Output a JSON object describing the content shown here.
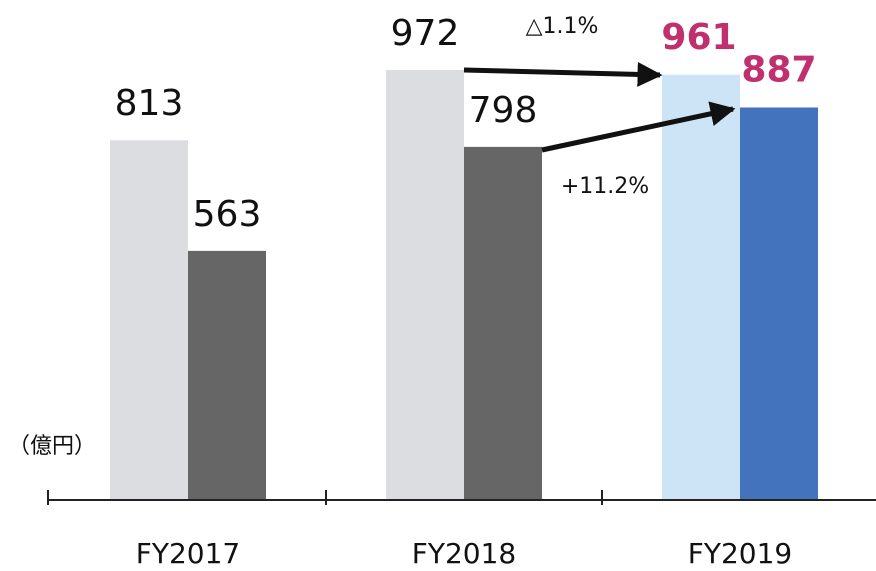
{
  "chart_data": {
    "type": "bar",
    "categories": [
      "FY2017",
      "FY2018",
      "FY2019"
    ],
    "series": [
      {
        "colors": [
          "#dcdde0",
          "#dcdde0",
          "#cde4f6"
        ],
        "values": [
          813,
          972,
          961
        ],
        "label_colors": [
          "#111111",
          "#111111",
          "#c0306f"
        ],
        "label_weights": [
          "normal",
          "normal",
          "bold"
        ]
      },
      {
        "colors": [
          "#666666",
          "#666666",
          "#4473be"
        ],
        "values": [
          563,
          798,
          887
        ],
        "label_colors": [
          "#111111",
          "#111111",
          "#c0306f"
        ],
        "label_weights": [
          "normal",
          "normal",
          "bold"
        ]
      }
    ],
    "unit_label": "（億円）",
    "annotations": [
      "△1.1%",
      "+11.2%"
    ]
  }
}
